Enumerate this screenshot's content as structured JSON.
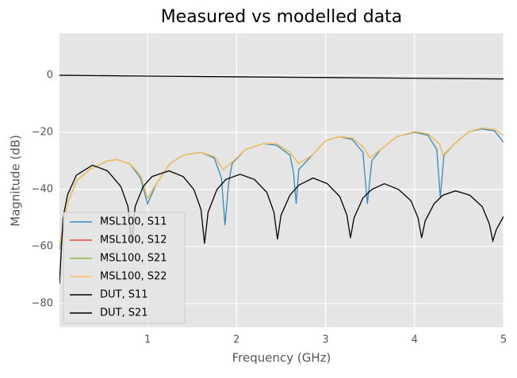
{
  "chart_data": {
    "type": "line",
    "title": "Measured vs modelled data",
    "x_label": "Frequency (GHz)",
    "y_label": "Magnitude (dB)",
    "xlim": [
      0.01,
      5
    ],
    "ylim": [
      -88.3,
      14.7
    ],
    "xticks": [
      1,
      2,
      3,
      4,
      5
    ],
    "yticks": [
      {
        "value": -80,
        "label": "−80"
      },
      {
        "value": -60,
        "label": "−60"
      },
      {
        "value": -40,
        "label": "−40"
      },
      {
        "value": -20,
        "label": "−20"
      },
      0
    ],
    "grid": true,
    "legend_loc": "lower left",
    "series": [
      {
        "name": "MSL100, S11",
        "color": "#348abd",
        "x": [
          0.01,
          0.1,
          0.2,
          0.35,
          0.55,
          0.65,
          0.8,
          0.92,
          1.0,
          1.1,
          1.25,
          1.4,
          1.6,
          1.75,
          1.83,
          1.87,
          1.91,
          1.95,
          2.1,
          2.3,
          2.45,
          2.6,
          2.64,
          2.67,
          2.7,
          2.85,
          3.0,
          3.15,
          3.3,
          3.42,
          3.47,
          3.52,
          3.62,
          3.8,
          4.0,
          4.15,
          4.25,
          4.29,
          4.33,
          4.45,
          4.6,
          4.75,
          4.9,
          5.0
        ],
        "values": [
          -61,
          -45,
          -37,
          -33,
          -30,
          -29.5,
          -31,
          -36,
          -45,
          -38,
          -31,
          -28,
          -27,
          -29,
          -36,
          -52.5,
          -38,
          -31,
          -26,
          -24,
          -24.5,
          -28,
          -34,
          -45,
          -33,
          -28,
          -23,
          -21.5,
          -22.5,
          -27,
          -45,
          -30,
          -26,
          -21.5,
          -20,
          -21,
          -26,
          -43,
          -28,
          -24,
          -20,
          -18.8,
          -19.5,
          -23.5
        ]
      },
      {
        "name": "MSL100, S12",
        "color": "#e24a33",
        "x": [
          0.01,
          0.1,
          0.2,
          0.35,
          0.55,
          0.65,
          0.8,
          0.92,
          1.0,
          1.1,
          1.25,
          1.4,
          1.6,
          1.75,
          1.85,
          1.95,
          2.1,
          2.3,
          2.45,
          2.6,
          2.7,
          2.85,
          3.0,
          3.15,
          3.3,
          3.42,
          3.5,
          3.62,
          3.8,
          4.0,
          4.15,
          4.28,
          4.32,
          4.45,
          4.6,
          4.75,
          4.9,
          5.0
        ],
        "values": [
          -60,
          -45,
          -37,
          -33,
          -30,
          -29.5,
          -31,
          -35,
          -43,
          -38,
          -31,
          -28,
          -27,
          -28.5,
          -33,
          -30.5,
          -26,
          -24,
          -24,
          -27,
          -31,
          -28,
          -23,
          -21.5,
          -22,
          -25,
          -29,
          -26,
          -21.5,
          -19.8,
          -20.5,
          -24,
          -28,
          -24,
          -20,
          -18.5,
          -19,
          -21
        ]
      },
      {
        "name": "MSL100, S21",
        "color": "#8eba42",
        "x": [
          0.01,
          0.1,
          0.2,
          0.35,
          0.55,
          0.65,
          0.8,
          0.92,
          1.0,
          1.1,
          1.25,
          1.4,
          1.6,
          1.75,
          1.85,
          1.95,
          2.1,
          2.3,
          2.45,
          2.6,
          2.7,
          2.85,
          3.0,
          3.15,
          3.3,
          3.42,
          3.5,
          3.62,
          3.8,
          4.0,
          4.15,
          4.28,
          4.32,
          4.45,
          4.6,
          4.75,
          4.9,
          5.0
        ],
        "values": [
          -60,
          -45,
          -37,
          -33,
          -30,
          -29.5,
          -31,
          -35,
          -43,
          -38,
          -31,
          -28,
          -27,
          -28.5,
          -33,
          -30.5,
          -26,
          -24,
          -24,
          -27,
          -31,
          -28,
          -23,
          -21.5,
          -22,
          -25,
          -29,
          -26,
          -21.5,
          -19.8,
          -20.5,
          -24,
          -28,
          -24,
          -20,
          -18.5,
          -19,
          -21
        ]
      },
      {
        "name": "MSL100, S22",
        "color": "#fbc15e",
        "x": [
          0.01,
          0.1,
          0.2,
          0.35,
          0.55,
          0.65,
          0.8,
          0.92,
          1.0,
          1.1,
          1.25,
          1.4,
          1.6,
          1.75,
          1.85,
          1.95,
          2.1,
          2.3,
          2.45,
          2.6,
          2.7,
          2.85,
          3.0,
          3.15,
          3.3,
          3.42,
          3.5,
          3.62,
          3.8,
          4.0,
          4.15,
          4.28,
          4.32,
          4.45,
          4.6,
          4.75,
          4.9,
          5.0
        ],
        "values": [
          -60,
          -45,
          -37,
          -33,
          -30,
          -29.5,
          -31,
          -35,
          -43,
          -38,
          -31,
          -28,
          -27,
          -28.5,
          -33,
          -30.5,
          -26,
          -24,
          -24,
          -27,
          -31,
          -28,
          -23,
          -21.5,
          -22,
          -25,
          -29,
          -26,
          -21.5,
          -19.8,
          -20.5,
          -24,
          -28,
          -24,
          -20,
          -18.5,
          -19,
          -21
        ]
      },
      {
        "name": "DUT, S11",
        "color": "#000000",
        "x": [
          0.01,
          0.05,
          0.1,
          0.2,
          0.38,
          0.55,
          0.7,
          0.78,
          0.82,
          0.86,
          0.95,
          1.05,
          1.24,
          1.4,
          1.52,
          1.6,
          1.64,
          1.68,
          1.78,
          1.88,
          2.04,
          2.2,
          2.34,
          2.42,
          2.46,
          2.5,
          2.6,
          2.7,
          2.86,
          3.02,
          3.16,
          3.24,
          3.28,
          3.32,
          3.42,
          3.52,
          3.66,
          3.82,
          3.96,
          4.04,
          4.08,
          4.12,
          4.22,
          4.32,
          4.46,
          4.62,
          4.76,
          4.84,
          4.88,
          4.92,
          5.0
        ],
        "values": [
          -73,
          -50,
          -42,
          -35,
          -31.5,
          -33.5,
          -39,
          -46,
          -59,
          -46,
          -39,
          -35.5,
          -33.5,
          -35.5,
          -40,
          -47,
          -59,
          -48,
          -40,
          -36.5,
          -34.7,
          -36.5,
          -41,
          -48,
          -57.5,
          -49,
          -42,
          -38.5,
          -36,
          -38,
          -42.5,
          -49,
          -57,
          -50,
          -43,
          -40,
          -38,
          -40,
          -44,
          -50,
          -57,
          -51,
          -45,
          -42,
          -40.5,
          -42,
          -46,
          -52,
          -58,
          -54,
          -49.5
        ]
      },
      {
        "name": "DUT, S21",
        "color": "#000000",
        "x": [
          0.01,
          1,
          2,
          3,
          4,
          5
        ],
        "values": [
          0,
          -0.3,
          -0.55,
          -0.8,
          -1.05,
          -1.3
        ]
      }
    ]
  }
}
